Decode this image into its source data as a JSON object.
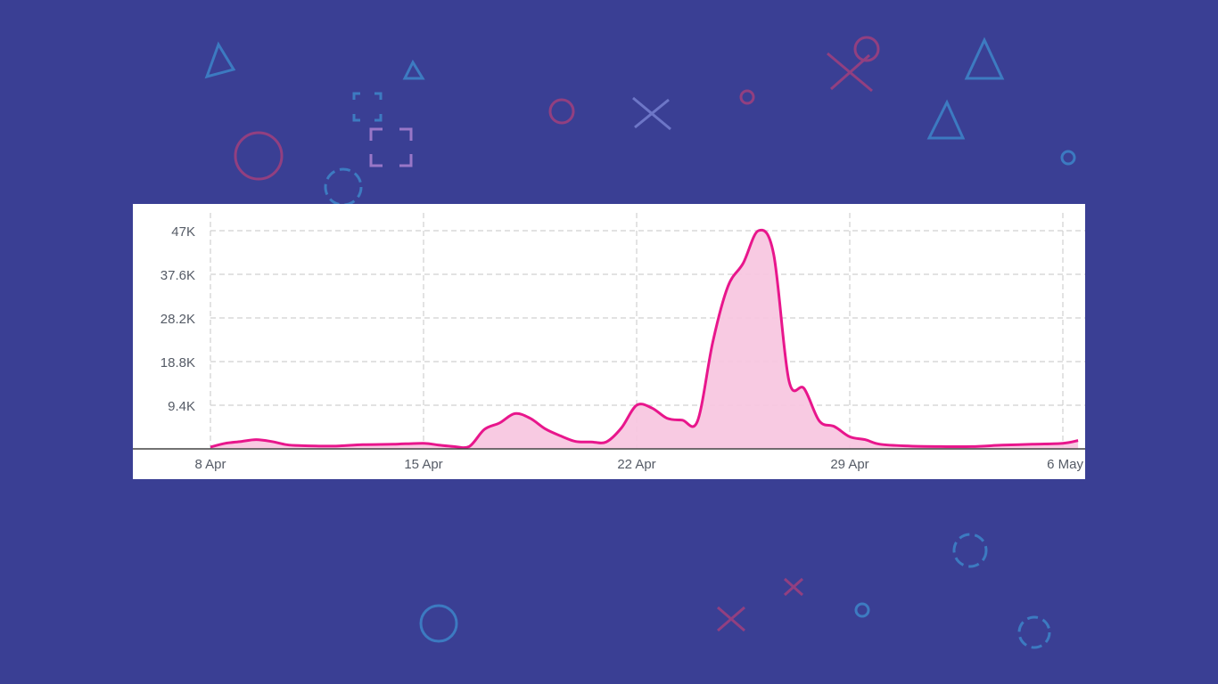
{
  "background": {
    "color": "#3a3f94",
    "decoration_icons": [
      "triangle-icon",
      "circle-icon",
      "cross-icon",
      "square-bracket-icon"
    ]
  },
  "chart_data": {
    "type": "area",
    "title": "",
    "xlabel": "",
    "ylabel": "",
    "x_tick_labels": [
      "8 Apr",
      "15 Apr",
      "22 Apr",
      "29 Apr",
      "6 May"
    ],
    "y_tick_labels": [
      "9.4K",
      "18.8K",
      "28.2K",
      "37.6K",
      "47K"
    ],
    "y_tick_values": [
      9400,
      18800,
      28200,
      37600,
      47000
    ],
    "xlim": [
      "2024-04-08",
      "2024-05-06"
    ],
    "ylim": [
      0,
      47000
    ],
    "grid": true,
    "legend": "none",
    "colors": {
      "line": "#e8168c",
      "fill": "#f7c4df",
      "grid": "#d0d0d0"
    },
    "series": [
      {
        "x": [
          "2024-04-08",
          "2024-04-08T12",
          "2024-04-09",
          "2024-04-09T12",
          "2024-04-10",
          "2024-04-10T12",
          "2024-04-11",
          "2024-04-12",
          "2024-04-13",
          "2024-04-14",
          "2024-04-15",
          "2024-04-15T12",
          "2024-04-16",
          "2024-04-16T12",
          "2024-04-17",
          "2024-04-17T12",
          "2024-04-18",
          "2024-04-18T12",
          "2024-04-19",
          "2024-04-19T12",
          "2024-04-20",
          "2024-04-20T12",
          "2024-04-21",
          "2024-04-21T12",
          "2024-04-22",
          "2024-04-22T12",
          "2024-04-23",
          "2024-04-23T12",
          "2024-04-24",
          "2024-04-24T12",
          "2024-04-25",
          "2024-04-25T12",
          "2024-04-26",
          "2024-04-26T12",
          "2024-04-27",
          "2024-04-27T12",
          "2024-04-28",
          "2024-04-28T12",
          "2024-04-29",
          "2024-04-29T12",
          "2024-04-30",
          "2024-05-01",
          "2024-05-02",
          "2024-05-03",
          "2024-05-04",
          "2024-05-05",
          "2024-05-06",
          "2024-05-06T12"
        ],
        "y": [
          400,
          1200,
          1600,
          2000,
          1600,
          900,
          700,
          600,
          900,
          1000,
          1200,
          800,
          500,
          500,
          4200,
          5600,
          7600,
          6600,
          4300,
          2800,
          1600,
          1500,
          1500,
          4500,
          9400,
          8800,
          6600,
          6200,
          6000,
          23000,
          35000,
          40000,
          47000,
          42000,
          14800,
          13000,
          6000,
          4800,
          2600,
          2000,
          1000,
          600,
          500,
          500,
          800,
          1000,
          1200,
          1800
        ]
      }
    ]
  }
}
